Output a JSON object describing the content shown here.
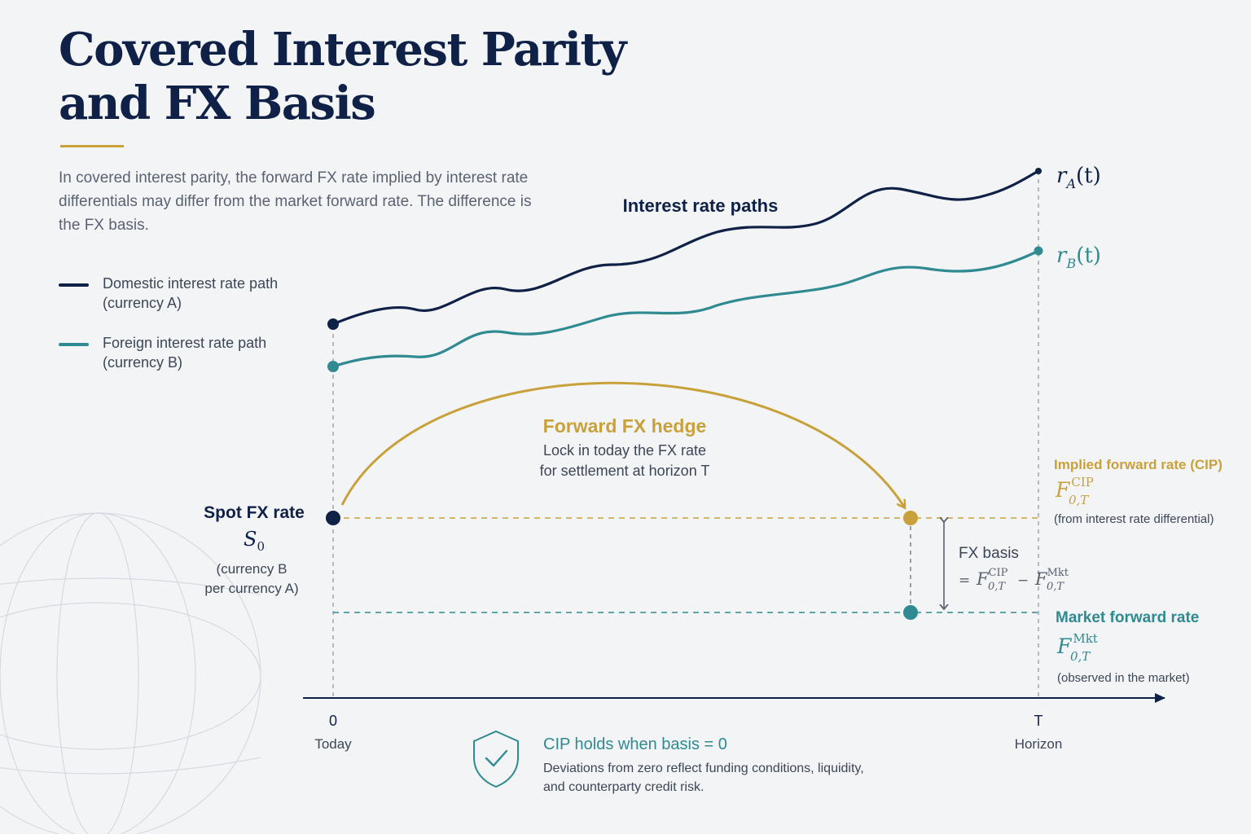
{
  "title": "Covered Interest Parity\nand FX Basis",
  "intro": "In covered interest parity, the forward FX rate implied by interest rate differentials may differ from the market forward rate. The difference is the FX basis.",
  "colors": {
    "navy": "#0f2147",
    "teal": "#2f8a91",
    "gold": "#c9a13b",
    "gray": "#5b6270"
  },
  "legend": [
    {
      "label": "Domestic interest rate path\n(currency A)",
      "color": "#0f2147"
    },
    {
      "label": "Foreign interest rate path\n(currency B)",
      "color": "#2f8a91"
    }
  ],
  "paths_label": "Interest rate paths",
  "rate_labels": {
    "a": {
      "var": "r",
      "sub": "A",
      "arg": "(t)"
    },
    "b": {
      "var": "r",
      "sub": "B",
      "arg": "(t)"
    }
  },
  "spot": {
    "title": "Spot FX rate",
    "symbol": "S",
    "symbol_sub": "0",
    "note": "(currency B\nper currency A)"
  },
  "hedge": {
    "title": "Forward FX hedge",
    "text": "Lock in today the FX rate\nfor settlement at horizon T"
  },
  "implied": {
    "title": "Implied forward rate (CIP)",
    "symbol": "F",
    "sup": "CIP",
    "sub": "0,T",
    "note": "(from interest rate differential)"
  },
  "basis": {
    "title": "FX basis",
    "eq": "=",
    "minus": "−",
    "f1_sup": "CIP",
    "f1_sub": "0,T",
    "f2_sup": "Mkt",
    "f2_sub": "0,T"
  },
  "market": {
    "title": "Market forward rate",
    "symbol": "F",
    "sup": "Mkt",
    "sub": "0,T",
    "note": "(observed in the market)"
  },
  "axis": {
    "start_tick": "0",
    "start_label": "Today",
    "end_tick": "T",
    "end_label": "Horizon"
  },
  "footer": {
    "title": "CIP holds when basis = 0",
    "text": "Deviations from zero reflect funding conditions, liquidity,\nand counterparty credit risk.",
    "icon": "shield-check-icon"
  }
}
